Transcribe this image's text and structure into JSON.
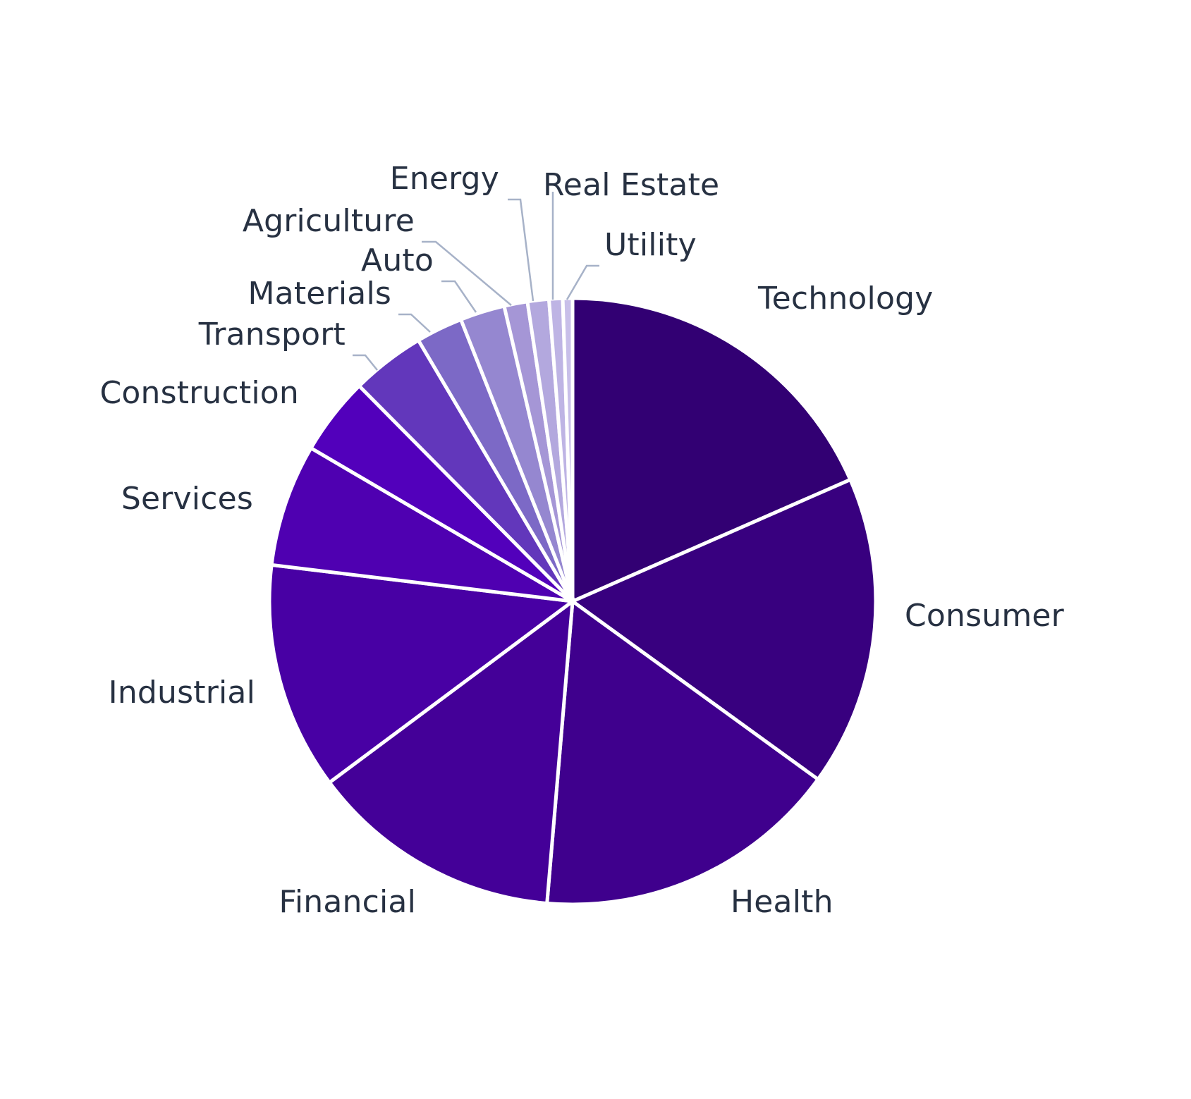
{
  "chart_data": {
    "type": "pie",
    "title": "",
    "start": "top",
    "direction": "clockwise",
    "legend": "none",
    "slices": [
      {
        "label": "Technology",
        "value": 17.8,
        "color": "#320073"
      },
      {
        "label": "Consumer",
        "value": 16.0,
        "color": "#38007f"
      },
      {
        "label": "Health",
        "value": 15.8,
        "color": "#3f008d"
      },
      {
        "label": "Financial",
        "value": 13.0,
        "color": "#440098"
      },
      {
        "label": "Industrial",
        "value": 11.7,
        "color": "#4800a4"
      },
      {
        "label": "Services",
        "value": 6.3,
        "color": "#4f00b1"
      },
      {
        "label": "Construction",
        "value": 4.0,
        "color": "#5200bb"
      },
      {
        "label": "Transport",
        "value": 3.8,
        "color": "#6237bb"
      },
      {
        "label": "Materials",
        "value": 2.4,
        "color": "#7c69c6"
      },
      {
        "label": "Auto",
        "value": 2.3,
        "color": "#9587d0"
      },
      {
        "label": "Agriculture",
        "value": 1.2,
        "color": "#a596d6"
      },
      {
        "label": "Energy",
        "value": 1.1,
        "color": "#b3a8de"
      },
      {
        "label": "Real Estate",
        "value": 0.7,
        "color": "#beb4e4"
      },
      {
        "label": "Utility",
        "value": 0.5,
        "color": "#c8bfe9"
      }
    ]
  }
}
